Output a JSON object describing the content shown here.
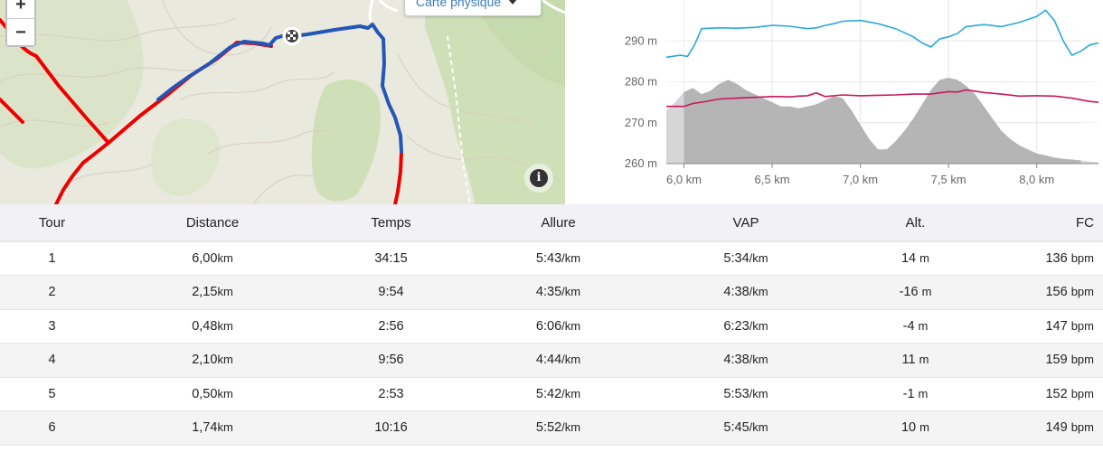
{
  "map": {
    "zoom_in_label": "+",
    "zoom_out_label": "−",
    "map_type_label": "Carte physique",
    "info_label": "i",
    "colors": {
      "track_red": "#ee0000",
      "track_blue": "#2456b8",
      "forest": "#cfe0b8",
      "terrain": "#e9e9de"
    }
  },
  "chart_data": {
    "type": "area",
    "x_unit": "km",
    "x_ticks": [
      "6,0 km",
      "6,5 km",
      "7,0 km",
      "7,5 km",
      "8,0 km"
    ],
    "x_tick_values": [
      6.0,
      6.5,
      7.0,
      7.5,
      8.0
    ],
    "y_ticks": [
      "260 m",
      "270 m",
      "280 m",
      "290 m"
    ],
    "y_tick_values": [
      260,
      270,
      280,
      290
    ],
    "ylim": [
      260,
      300
    ],
    "xlim": [
      5.9,
      8.35
    ],
    "grid": true,
    "colors": {
      "elevation": "#a8a8a8",
      "line_blue": "#2aa8df",
      "line_red": "#c8185a"
    },
    "series": [
      {
        "x": [
          5.9,
          5.95,
          6.0,
          6.05,
          6.1,
          6.15,
          6.2,
          6.25,
          6.3,
          6.35,
          6.4,
          6.45,
          6.5,
          6.55,
          6.6,
          6.65,
          6.7,
          6.75,
          6.8,
          6.85,
          6.9,
          6.95,
          7.0,
          7.05,
          7.1,
          7.15,
          7.2,
          7.25,
          7.3,
          7.35,
          7.4,
          7.45,
          7.5,
          7.55,
          7.6,
          7.65,
          7.7,
          7.75,
          7.8,
          7.85,
          7.9,
          7.95,
          8.0,
          8.05,
          8.1,
          8.15,
          8.2,
          8.25,
          8.3,
          8.35
        ],
        "values": [
          273,
          275,
          277.5,
          278.5,
          277,
          277.8,
          279.5,
          280.5,
          279.5,
          278,
          277,
          276,
          275,
          274,
          274,
          273.5,
          274,
          274.5,
          275.5,
          276.5,
          276,
          273,
          269.5,
          266,
          263.5,
          263.5,
          265.5,
          268,
          271,
          274.5,
          278,
          280.5,
          281,
          280.5,
          279,
          277,
          274,
          271,
          268,
          266,
          264.5,
          263.5,
          262.5,
          262,
          261.5,
          261.2,
          261,
          260.8,
          260.5,
          260.3
        ]
      },
      {
        "x": [
          5.9,
          5.98,
          6.02,
          6.06,
          6.1,
          6.2,
          6.3,
          6.4,
          6.5,
          6.6,
          6.7,
          6.75,
          6.8,
          6.85,
          6.9,
          7.0,
          7.1,
          7.2,
          7.3,
          7.35,
          7.4,
          7.45,
          7.5,
          7.55,
          7.6,
          7.7,
          7.8,
          7.9,
          8.0,
          8.05,
          8.1,
          8.15,
          8.2,
          8.25,
          8.3,
          8.35
        ],
        "values": [
          286,
          286.5,
          286.2,
          289,
          293,
          293.2,
          293.1,
          293.3,
          293.8,
          293.6,
          293,
          293.2,
          293.8,
          294.2,
          294.8,
          295,
          294.2,
          293,
          291,
          289.5,
          288.5,
          290.5,
          291,
          291.8,
          293.5,
          294,
          293.5,
          294.5,
          296,
          297.5,
          295,
          290,
          286.5,
          287.5,
          289,
          289.5
        ]
      },
      {
        "x": [
          5.9,
          6.0,
          6.05,
          6.1,
          6.2,
          6.3,
          6.4,
          6.5,
          6.55,
          6.6,
          6.65,
          6.7,
          6.75,
          6.8,
          6.9,
          7.0,
          7.1,
          7.2,
          7.3,
          7.4,
          7.45,
          7.5,
          7.55,
          7.6,
          7.7,
          7.8,
          7.9,
          8.0,
          8.1,
          8.2,
          8.3,
          8.35
        ],
        "values": [
          274,
          274,
          274.7,
          275,
          275.8,
          276,
          276.2,
          276.4,
          276.4,
          276.3,
          276.5,
          276.6,
          277.3,
          276.4,
          276.8,
          276.6,
          276.7,
          276.8,
          277,
          277,
          277.3,
          277.6,
          277.5,
          278,
          277.4,
          277,
          276.5,
          276.6,
          276.5,
          276,
          275.2,
          275
        ]
      }
    ]
  },
  "table": {
    "headers": [
      "Tour",
      "Distance",
      "Temps",
      "Allure",
      "VAP",
      "Alt.",
      "FC"
    ],
    "rows": [
      {
        "tour": "1",
        "distance": "6,00",
        "distance_unit": "km",
        "temps": "34:15",
        "allure": "5:43",
        "allure_unit": "/km",
        "vap": "5:34",
        "vap_unit": "/km",
        "alt": "14",
        "alt_unit": "m",
        "fc": "136",
        "fc_unit": "bpm"
      },
      {
        "tour": "2",
        "distance": "2,15",
        "distance_unit": "km",
        "temps": "9:54",
        "allure": "4:35",
        "allure_unit": "/km",
        "vap": "4:38",
        "vap_unit": "/km",
        "alt": "-16",
        "alt_unit": "m",
        "fc": "156",
        "fc_unit": "bpm"
      },
      {
        "tour": "3",
        "distance": "0,48",
        "distance_unit": "km",
        "temps": "2:56",
        "allure": "6:06",
        "allure_unit": "/km",
        "vap": "6:23",
        "vap_unit": "/km",
        "alt": "-4",
        "alt_unit": "m",
        "fc": "147",
        "fc_unit": "bpm"
      },
      {
        "tour": "4",
        "distance": "2,10",
        "distance_unit": "km",
        "temps": "9:56",
        "allure": "4:44",
        "allure_unit": "/km",
        "vap": "4:38",
        "vap_unit": "/km",
        "alt": "11",
        "alt_unit": "m",
        "fc": "159",
        "fc_unit": "bpm"
      },
      {
        "tour": "5",
        "distance": "0,50",
        "distance_unit": "km",
        "temps": "2:53",
        "allure": "5:42",
        "allure_unit": "/km",
        "vap": "5:53",
        "vap_unit": "/km",
        "alt": "-1",
        "alt_unit": "m",
        "fc": "152",
        "fc_unit": "bpm"
      },
      {
        "tour": "6",
        "distance": "1,74",
        "distance_unit": "km",
        "temps": "10:16",
        "allure": "5:52",
        "allure_unit": "/km",
        "vap": "5:45",
        "vap_unit": "/km",
        "alt": "10",
        "alt_unit": "m",
        "fc": "149",
        "fc_unit": "bpm"
      }
    ]
  }
}
